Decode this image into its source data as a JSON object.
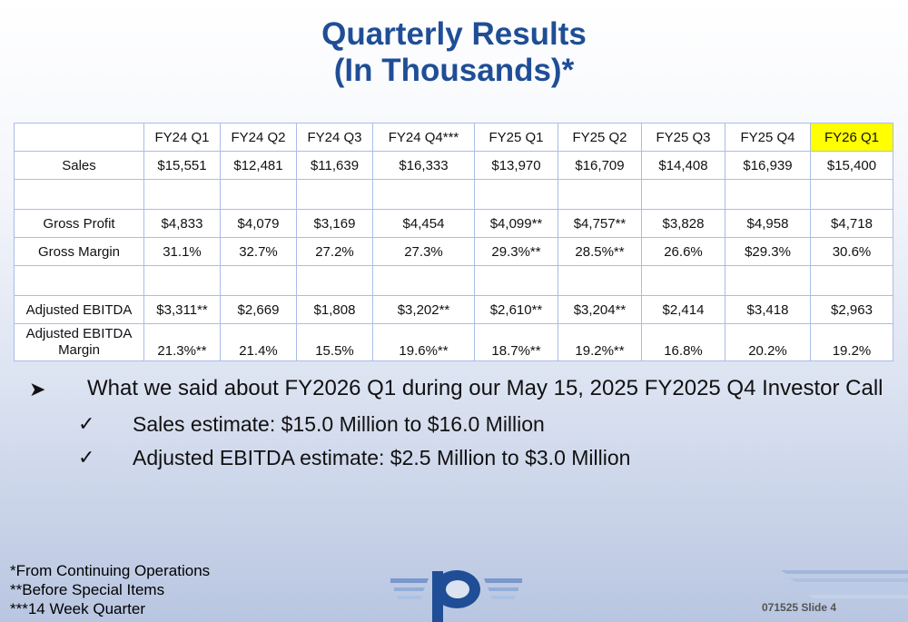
{
  "title": {
    "line1": "Quarterly Results",
    "line2": "(In Thousands)*"
  },
  "table": {
    "corner": "",
    "columns": [
      "FY24 Q1",
      "FY24 Q2",
      "FY24 Q3",
      "FY24 Q4***",
      "FY25 Q1",
      "FY25 Q2",
      "FY25 Q3",
      "FY25 Q4",
      "FY26 Q1"
    ],
    "highlight_color": "#ffff00",
    "rows": [
      {
        "label": "Sales",
        "values": [
          "$15,551",
          "$12,481",
          "$11,639",
          "$16,333",
          "$13,970",
          "$16,709",
          "$14,408",
          "$16,939",
          "$15,400"
        ]
      },
      {
        "label": "",
        "values": [
          "",
          "",
          "",
          "",
          "",
          "",
          "",
          "",
          ""
        ]
      },
      {
        "label": "Gross Profit",
        "values": [
          "$4,833",
          "$4,079",
          "$3,169",
          "$4,454",
          "$4,099**",
          "$4,757**",
          "$3,828",
          "$4,958",
          "$4,718"
        ]
      },
      {
        "label": "Gross Margin",
        "values": [
          "31.1%",
          "32.7%",
          "27.2%",
          "27.3%",
          "29.3%**",
          "28.5%**",
          "26.6%",
          "$29.3%",
          "30.6%"
        ]
      },
      {
        "label": "",
        "values": [
          "",
          "",
          "",
          "",
          "",
          "",
          "",
          "",
          ""
        ]
      },
      {
        "label": "Adjusted EBITDA",
        "values": [
          "$3,311**",
          "$2,669",
          "$1,808",
          "$3,202**",
          "$2,610**",
          "$3,204**",
          "$2,414",
          "$3,418",
          "$2,963"
        ]
      },
      {
        "label_line1": "Adjusted EBITDA",
        "label_line2": "Margin",
        "values": [
          "21.3%**",
          "21.4%",
          "15.5%",
          "19.6%**",
          "18.7%**",
          "19.2%**",
          "16.8%",
          "20.2%",
          "19.2%"
        ]
      }
    ]
  },
  "bullets": {
    "main_icon": "arrow-bullet-icon",
    "main": "What we said about FY2026 Q1 during our May 15, 2025 FY2025 Q4 Investor Call",
    "sub_icon": "checkmark-icon",
    "subs": [
      "Sales estimate: $15.0 Million to $16.0 Million",
      "Adjusted EBITDA estimate: $2.5 Million to $3.0 Million"
    ]
  },
  "footnotes": [
    "*From Continuing Operations",
    "**Before Special Items",
    "***14 Week Quarter"
  ],
  "slide_number": "071525 Slide 4",
  "colors": {
    "title": "#1f4e96",
    "table_border": "#a9bde6",
    "logo": "#1f4e96"
  }
}
